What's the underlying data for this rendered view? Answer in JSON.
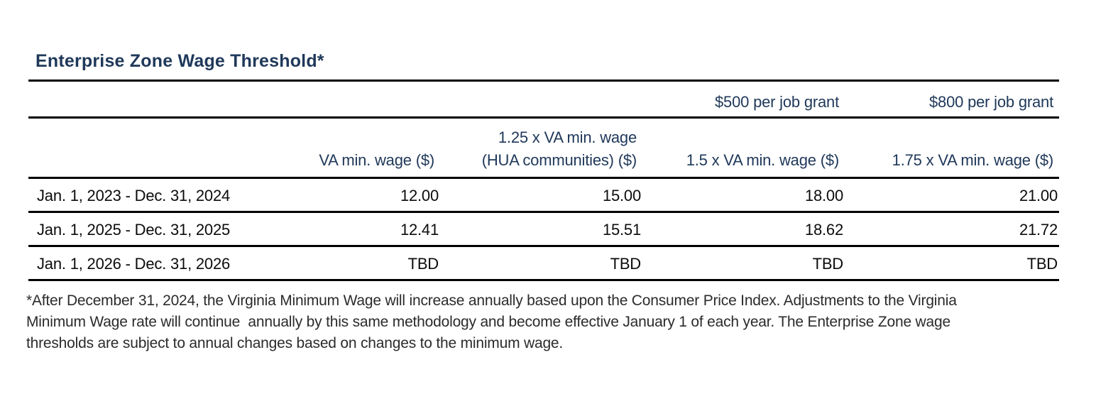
{
  "title": "Enterprise Zone Wage Threshold*",
  "colors": {
    "title_navy": "#20395a",
    "header_navy": "#20395a",
    "data_text": "#0c0c0c",
    "rule": "#000000",
    "background": "#ffffff"
  },
  "table": {
    "grant_headers": {
      "grant_500": "$500 per job grant",
      "grant_800": "$800 per job grant"
    },
    "column_headers": {
      "col1": "VA min. wage ($)",
      "col2_line1": "1.25 x VA min. wage",
      "col2_line2": "(HUA communities) ($)",
      "col3": "1.5 x VA min. wage ($)",
      "col4": "1.75 x VA min. wage ($)"
    },
    "rows": [
      {
        "period": "Jan. 1, 2023 - Dec. 31, 2024",
        "values": [
          "12.00",
          "15.00",
          "18.00",
          "21.00"
        ]
      },
      {
        "period": "Jan. 1, 2025 - Dec. 31, 2025",
        "values": [
          "12.41",
          "15.51",
          "18.62",
          "21.72"
        ]
      },
      {
        "period": "Jan. 1, 2026 - Dec. 31, 2026",
        "values": [
          "TBD",
          "TBD",
          "TBD",
          "TBD"
        ]
      }
    ]
  },
  "footnote": {
    "line1": "*After December 31, 2024, the Virginia Minimum Wage will increase annually based upon the Consumer Price Index. Adjustments to the Virginia",
    "line2": "Minimum Wage rate will continue  annually by this same methodology and become effective January 1 of each year. The Enterprise Zone wage",
    "line3": "thresholds are subject to annual changes based on changes to the minimum wage."
  }
}
